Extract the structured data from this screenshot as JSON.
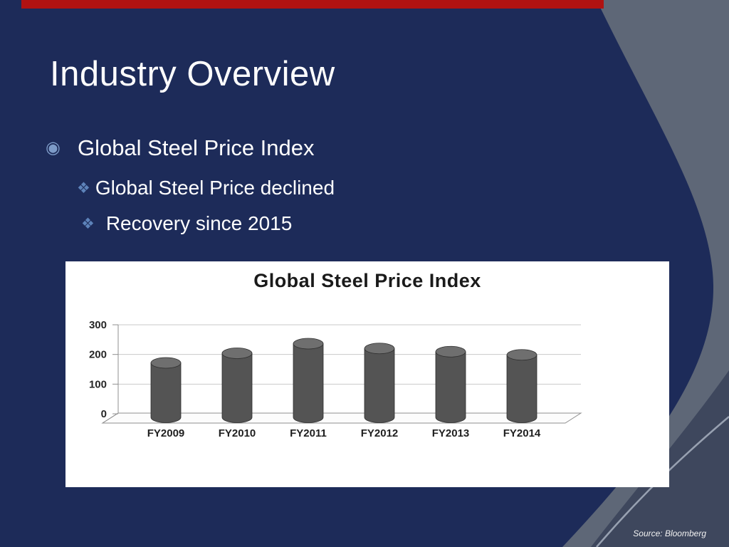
{
  "slide": {
    "title": "Industry Overview",
    "bullets": {
      "main": {
        "glyph": "◉",
        "label": "Global Steel Price Index"
      },
      "sub": [
        {
          "glyph": "❖",
          "label": "Global Steel Price declined"
        },
        {
          "glyph": "❖",
          "label": "Recovery since 2015"
        }
      ]
    },
    "source_note": "Source: Bloomberg"
  },
  "colors": {
    "background": "#1d2b59",
    "accent_bar": "#b01212",
    "swoosh_gray": "#5e6777",
    "swoosh_dark": "#3e475d",
    "swoosh_line": "#98a1b1",
    "text": "#ffffff",
    "bullet_icon": "#7d9bc8",
    "sub_bullet_icon": "#5d83ba"
  },
  "chart_data": {
    "type": "bar",
    "subtype": "3d-cylinder",
    "title": "Global Steel Price Index",
    "categories": [
      "FY2009",
      "FY2010",
      "FY2011",
      "FY2012",
      "FY2013",
      "FY2014"
    ],
    "values": [
      170,
      200,
      230,
      215,
      205,
      195
    ],
    "xlabel": "",
    "ylabel": "",
    "ylim": [
      0,
      300
    ],
    "yticks": [
      0,
      100,
      200,
      300
    ],
    "grid": true,
    "legend": "none",
    "bar_color": "#545454",
    "chart_background": "#ffffff"
  }
}
